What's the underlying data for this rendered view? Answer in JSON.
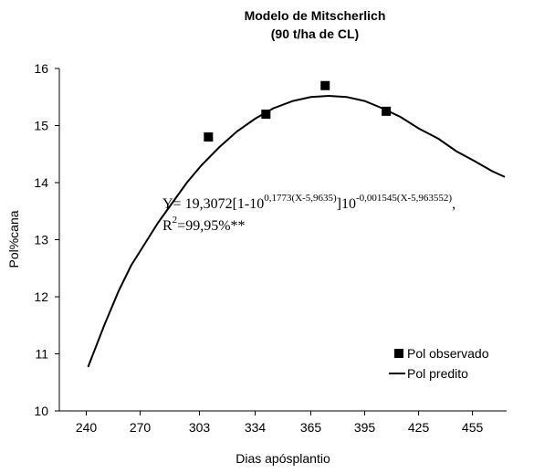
{
  "chart_data": {
    "type": "line",
    "title": "Modelo de Mitscherlich",
    "subtitle": "(90 t/ha de CL)",
    "x_label": "Dias apósplantio",
    "y_label": "Pol%cana",
    "xlim": [
      225,
      474
    ],
    "xticks": [
      240,
      270,
      303,
      334,
      365,
      395,
      425,
      455
    ],
    "ylim": [
      10,
      16
    ],
    "yticks": [
      10,
      11,
      12,
      13,
      14,
      15,
      16
    ],
    "grid": false,
    "legend": "lower right",
    "series": [
      {
        "name": "Pol observado",
        "type": "scatter",
        "color": "#000000",
        "x": [
          308,
          340,
          373,
          407
        ],
        "values": [
          14.8,
          15.2,
          15.7,
          15.25
        ]
      },
      {
        "name": "Pol predito",
        "type": "line",
        "color": "#000000",
        "x": [
          241,
          250,
          258,
          265,
          273,
          280,
          288,
          296,
          304,
          314,
          324,
          334,
          344,
          355,
          365,
          375,
          385,
          395,
          405,
          415,
          425,
          436,
          446,
          456,
          466,
          473
        ],
        "values": [
          10.77,
          11.5,
          12.1,
          12.55,
          12.95,
          13.3,
          13.65,
          14.0,
          14.3,
          14.62,
          14.9,
          15.12,
          15.3,
          15.43,
          15.5,
          15.52,
          15.5,
          15.43,
          15.3,
          15.15,
          14.95,
          14.77,
          14.55,
          14.38,
          14.2,
          14.1
        ]
      }
    ],
    "annotation": {
      "equation": [
        "Y= 19,3072[1-10",
        "0,1773(X-5,9635)",
        "]10",
        "-0,001545(X-5,963552)",
        ","
      ],
      "r2": [
        "R",
        "2",
        "=99,95%**"
      ]
    }
  }
}
